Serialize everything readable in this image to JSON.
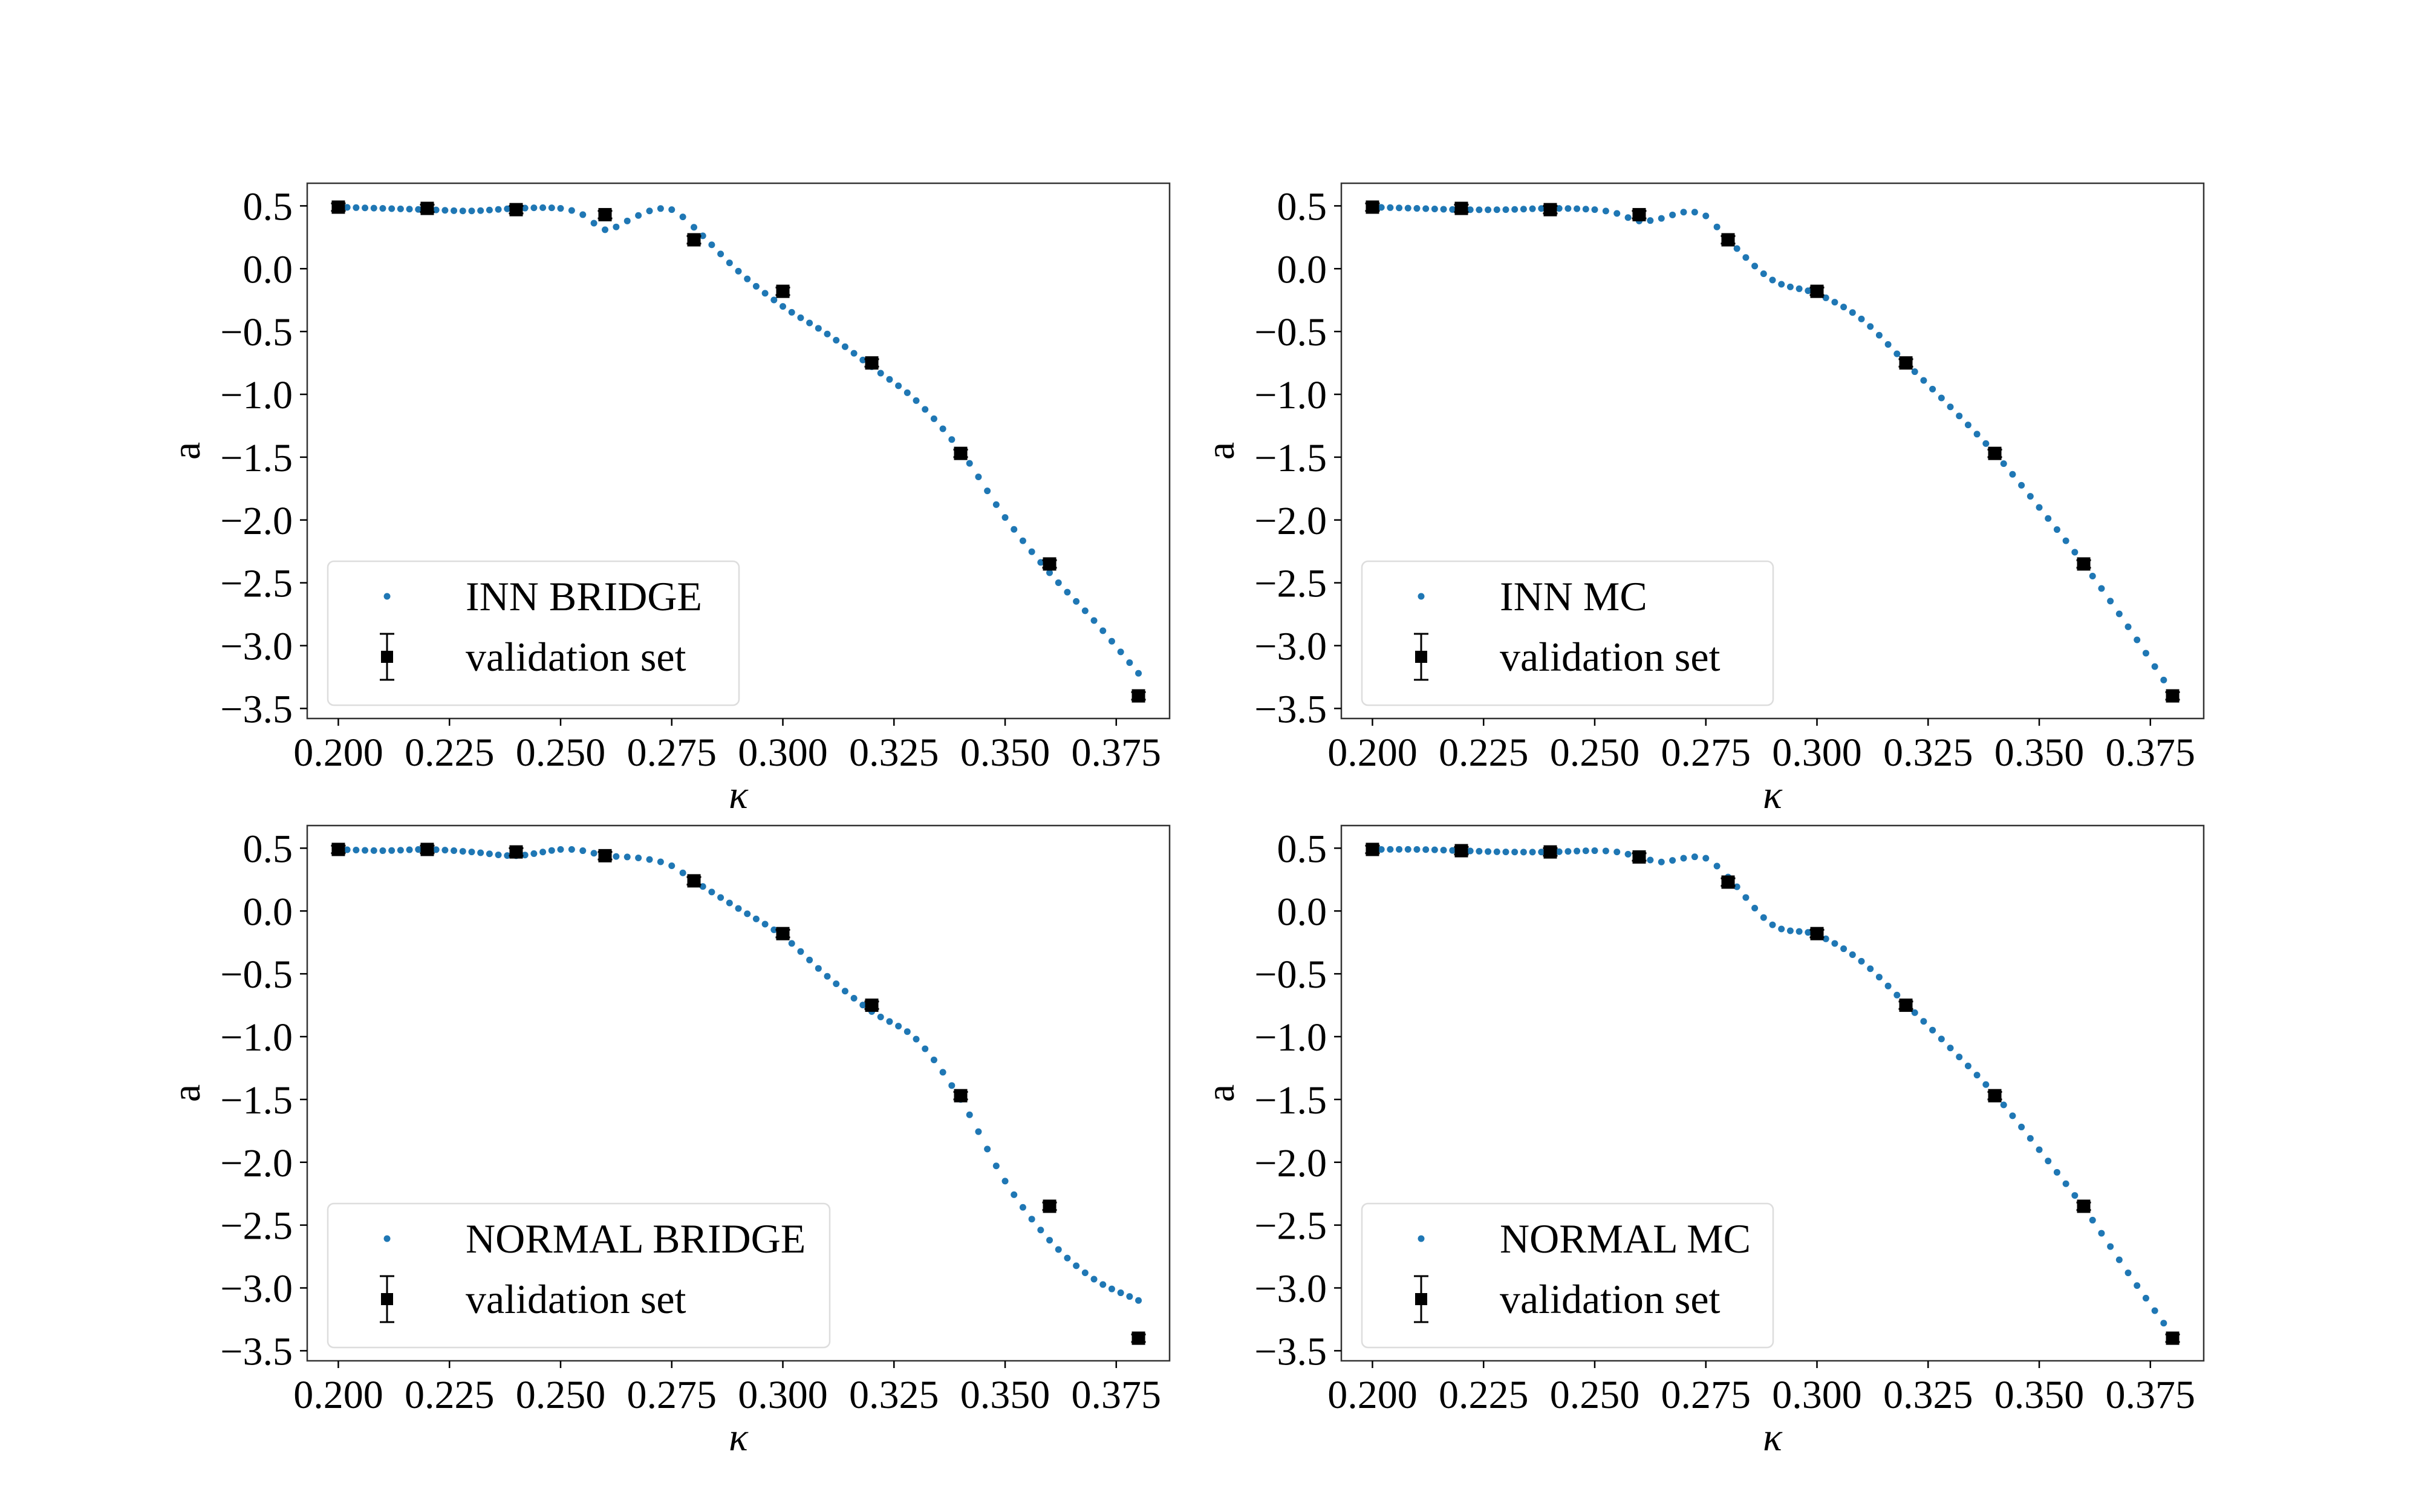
{
  "chart_data": [
    {
      "type": "scatter",
      "xlabel": "κ",
      "ylabel": "a",
      "xlim": [
        0.193,
        0.387
      ],
      "ylim": [
        -3.58,
        0.68
      ],
      "x_ticks": [
        "0.200",
        "0.225",
        "0.250",
        "0.275",
        "0.300",
        "0.325",
        "0.350",
        "0.375"
      ],
      "y_ticks": [
        "0.5",
        "0.0",
        "−0.5",
        "−1.0",
        "−1.5",
        "−2.0",
        "−2.5",
        "−3.0",
        "−3.5"
      ],
      "grid": false,
      "legend": {
        "position": "lower-left",
        "entries": [
          "INN BRIDGE",
          "validation set"
        ]
      },
      "series": [
        {
          "name": "INN BRIDGE",
          "style": "dotted-markers",
          "color": "#1f77b4",
          "x": [
            0.2,
            0.21,
            0.22,
            0.23,
            0.24,
            0.25,
            0.255,
            0.26,
            0.265,
            0.27,
            0.275,
            0.28,
            0.29,
            0.3,
            0.31,
            0.32,
            0.33,
            0.34,
            0.35,
            0.36,
            0.37,
            0.38
          ],
          "y": [
            0.49,
            0.48,
            0.47,
            0.46,
            0.48,
            0.48,
            0.43,
            0.31,
            0.38,
            0.46,
            0.47,
            0.33,
            -0.02,
            -0.3,
            -0.52,
            -0.78,
            -1.05,
            -1.45,
            -1.98,
            -2.42,
            -2.8,
            -3.22
          ]
        },
        {
          "name": "validation set",
          "style": "square-errorbar",
          "color": "#000000",
          "x": [
            0.2,
            0.22,
            0.24,
            0.26,
            0.28,
            0.3,
            0.32,
            0.34,
            0.36,
            0.38
          ],
          "y": [
            0.49,
            0.48,
            0.47,
            0.43,
            0.23,
            -0.18,
            -0.75,
            -1.47,
            -2.35,
            -3.4
          ],
          "yerr": 0.03
        }
      ]
    },
    {
      "type": "scatter",
      "xlabel": "κ",
      "ylabel": "a",
      "xlim": [
        0.193,
        0.387
      ],
      "ylim": [
        -3.58,
        0.68
      ],
      "x_ticks": [
        "0.200",
        "0.225",
        "0.250",
        "0.275",
        "0.300",
        "0.325",
        "0.350",
        "0.375"
      ],
      "y_ticks": [
        "0.5",
        "0.0",
        "−0.5",
        "−1.0",
        "−1.5",
        "−2.0",
        "−2.5",
        "−3.0",
        "−3.5"
      ],
      "grid": false,
      "legend": {
        "position": "lower-left",
        "entries": [
          "INN MC",
          "validation set"
        ]
      },
      "series": [
        {
          "name": "INN MC",
          "style": "dotted-markers",
          "color": "#1f77b4",
          "x": [
            0.2,
            0.21,
            0.22,
            0.23,
            0.24,
            0.25,
            0.255,
            0.26,
            0.265,
            0.27,
            0.275,
            0.28,
            0.29,
            0.3,
            0.31,
            0.32,
            0.33,
            0.34,
            0.35,
            0.36,
            0.37,
            0.38
          ],
          "y": [
            0.49,
            0.48,
            0.47,
            0.47,
            0.48,
            0.47,
            0.44,
            0.38,
            0.4,
            0.45,
            0.42,
            0.23,
            -0.09,
            -0.2,
            -0.4,
            -0.75,
            -1.1,
            -1.47,
            -1.9,
            -2.35,
            -2.85,
            -3.38
          ]
        },
        {
          "name": "validation set",
          "style": "square-errorbar",
          "color": "#000000",
          "x": [
            0.2,
            0.22,
            0.24,
            0.26,
            0.28,
            0.3,
            0.32,
            0.34,
            0.36,
            0.38
          ],
          "y": [
            0.49,
            0.48,
            0.47,
            0.43,
            0.23,
            -0.18,
            -0.75,
            -1.47,
            -2.35,
            -3.4
          ],
          "yerr": 0.03
        }
      ]
    },
    {
      "type": "scatter",
      "xlabel": "κ",
      "ylabel": "a",
      "xlim": [
        0.193,
        0.387
      ],
      "ylim": [
        -3.58,
        0.68
      ],
      "x_ticks": [
        "0.200",
        "0.225",
        "0.250",
        "0.275",
        "0.300",
        "0.325",
        "0.350",
        "0.375"
      ],
      "y_ticks": [
        "0.5",
        "0.0",
        "−0.5",
        "−1.0",
        "−1.5",
        "−2.0",
        "−2.5",
        "−3.0",
        "−3.5"
      ],
      "grid": false,
      "legend": {
        "position": "lower-left",
        "entries": [
          "NORMAL BRIDGE",
          "validation set"
        ]
      },
      "series": [
        {
          "name": "NORMAL BRIDGE",
          "style": "dotted-markers",
          "color": "#1f77b4",
          "x": [
            0.2,
            0.21,
            0.22,
            0.23,
            0.24,
            0.25,
            0.255,
            0.26,
            0.265,
            0.27,
            0.275,
            0.28,
            0.29,
            0.3,
            0.31,
            0.32,
            0.33,
            0.34,
            0.35,
            0.36,
            0.37,
            0.38
          ],
          "y": [
            0.49,
            0.48,
            0.49,
            0.47,
            0.44,
            0.49,
            0.48,
            0.44,
            0.43,
            0.41,
            0.36,
            0.24,
            0.02,
            -0.2,
            -0.52,
            -0.8,
            -1.02,
            -1.5,
            -2.15,
            -2.62,
            -2.93,
            -3.1
          ]
        },
        {
          "name": "validation set",
          "style": "square-errorbar",
          "color": "#000000",
          "x": [
            0.2,
            0.22,
            0.24,
            0.26,
            0.28,
            0.3,
            0.32,
            0.34,
            0.36,
            0.38
          ],
          "y": [
            0.49,
            0.49,
            0.47,
            0.44,
            0.24,
            -0.18,
            -0.75,
            -1.47,
            -2.35,
            -3.4
          ],
          "yerr": 0.03
        }
      ]
    },
    {
      "type": "scatter",
      "xlabel": "κ",
      "ylabel": "a",
      "xlim": [
        0.193,
        0.387
      ],
      "ylim": [
        -3.58,
        0.68
      ],
      "x_ticks": [
        "0.200",
        "0.225",
        "0.250",
        "0.275",
        "0.300",
        "0.325",
        "0.350",
        "0.375"
      ],
      "y_ticks": [
        "0.5",
        "0.0",
        "−0.5",
        "−1.0",
        "−1.5",
        "−2.0",
        "−2.5",
        "−3.0",
        "−3.5"
      ],
      "grid": false,
      "legend": {
        "position": "lower-left",
        "entries": [
          "NORMAL MC",
          "validation set"
        ]
      },
      "series": [
        {
          "name": "NORMAL MC",
          "style": "dotted-markers",
          "color": "#1f77b4",
          "x": [
            0.2,
            0.21,
            0.22,
            0.23,
            0.24,
            0.25,
            0.255,
            0.26,
            0.265,
            0.27,
            0.275,
            0.28,
            0.29,
            0.3,
            0.31,
            0.32,
            0.33,
            0.34,
            0.35,
            0.36,
            0.37,
            0.38
          ],
          "y": [
            0.49,
            0.49,
            0.48,
            0.47,
            0.47,
            0.48,
            0.47,
            0.43,
            0.39,
            0.42,
            0.42,
            0.27,
            -0.11,
            -0.19,
            -0.4,
            -0.74,
            -1.09,
            -1.46,
            -1.9,
            -2.36,
            -2.88,
            -3.38
          ]
        },
        {
          "name": "validation set",
          "style": "square-errorbar",
          "color": "#000000",
          "x": [
            0.2,
            0.22,
            0.24,
            0.26,
            0.28,
            0.3,
            0.32,
            0.34,
            0.36,
            0.38
          ],
          "y": [
            0.49,
            0.48,
            0.47,
            0.43,
            0.23,
            -0.18,
            -0.75,
            -1.47,
            -2.35,
            -3.4
          ],
          "yerr": 0.03
        }
      ]
    }
  ]
}
